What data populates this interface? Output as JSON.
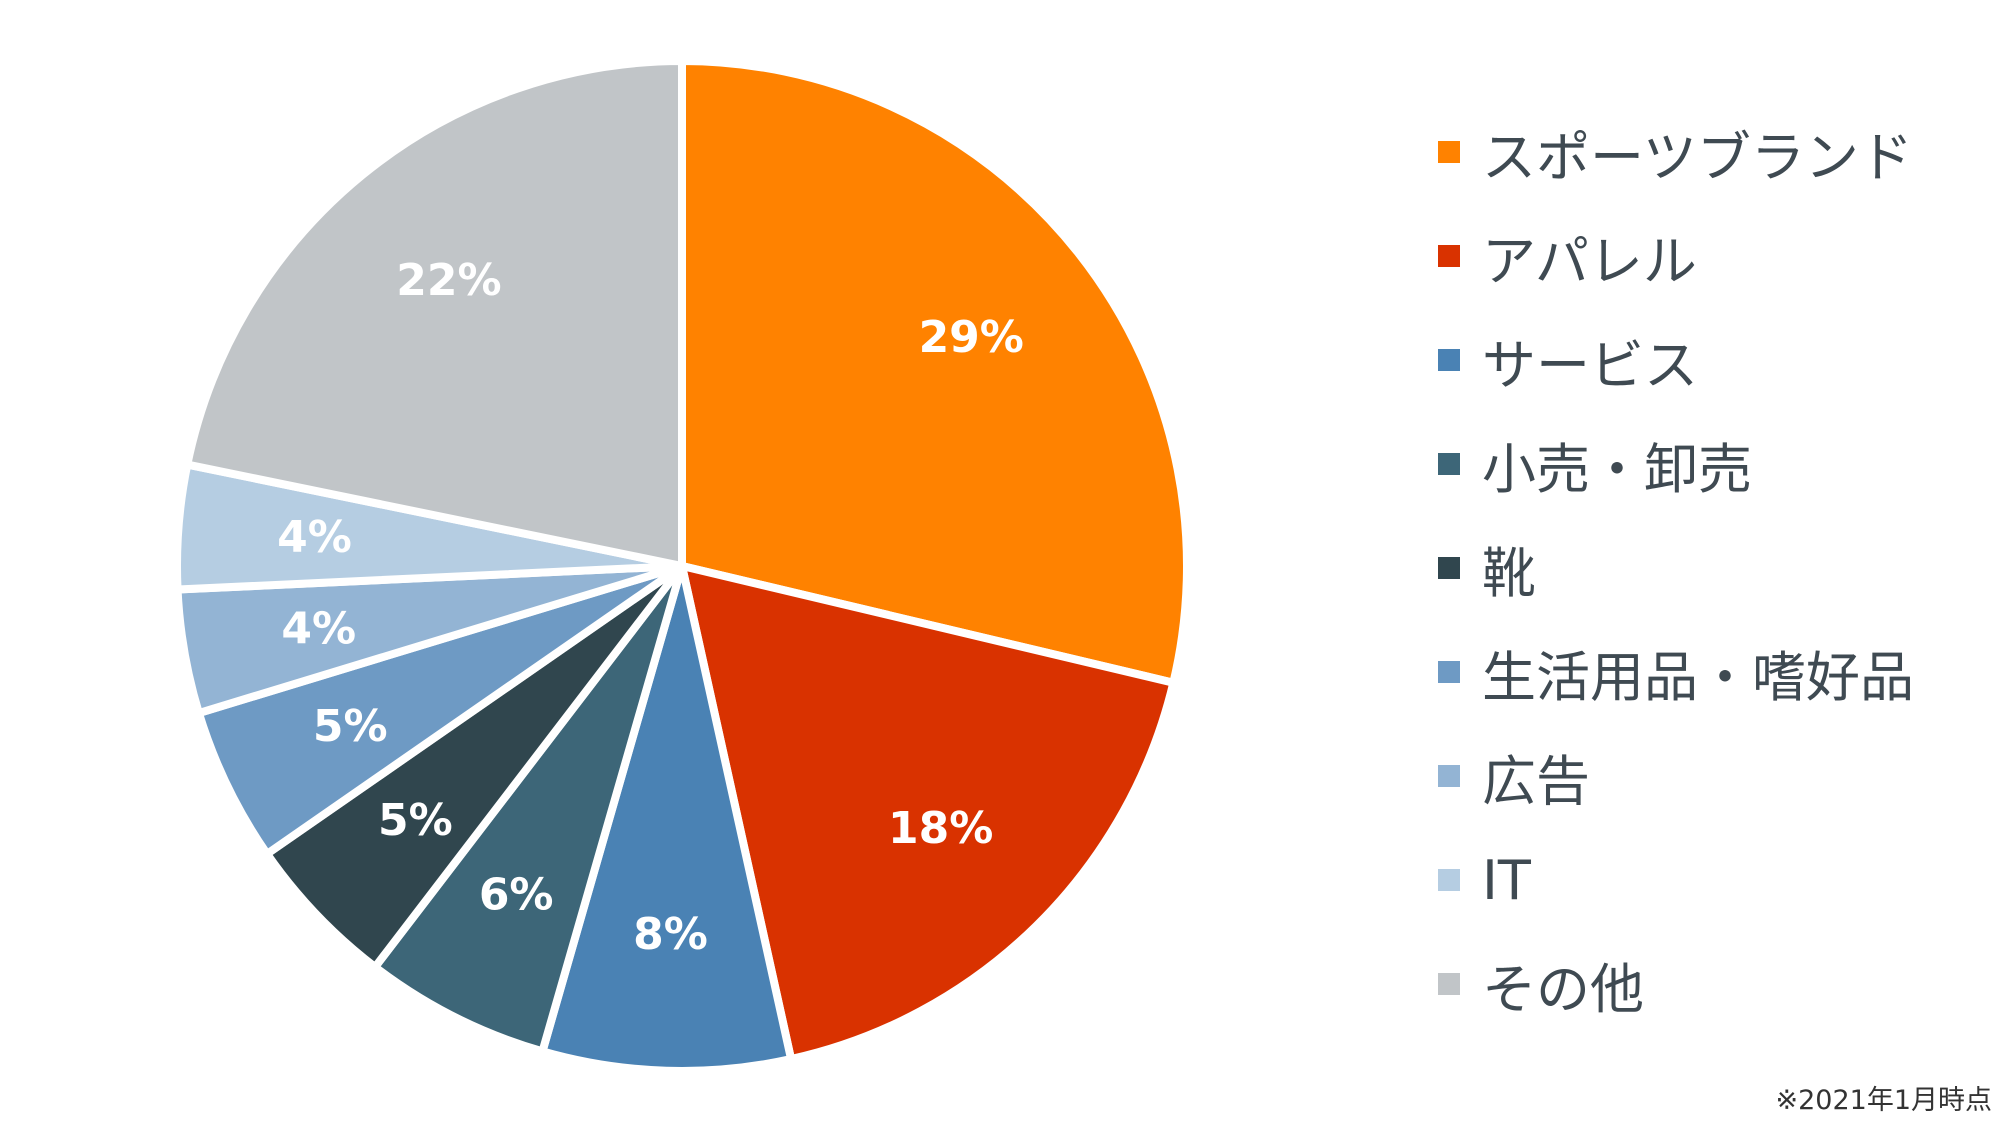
{
  "chart_data": {
    "type": "pie",
    "categories": [
      "スポーツブランド",
      "アパレル",
      "サービス",
      "小売・卸売",
      "靴",
      "生活用品・嗜好品",
      "広告",
      "IT",
      "その他"
    ],
    "values": [
      29,
      18,
      8,
      6,
      5,
      5,
      4,
      4,
      22
    ],
    "value_labels": [
      "29%",
      "18%",
      "8%",
      "6%",
      "5%",
      "5%",
      "4%",
      "4%",
      "22%"
    ],
    "colors": [
      "#FF8200",
      "#D93200",
      "#4A82B4",
      "#3D6678",
      "#30464E",
      "#6E9AC4",
      "#93B4D4",
      "#B5CDE2",
      "#C1C5C8"
    ],
    "start": "12 o'clock",
    "direction": "clockwise",
    "legend_position": "right"
  },
  "footnote": "※2021年1月時点"
}
